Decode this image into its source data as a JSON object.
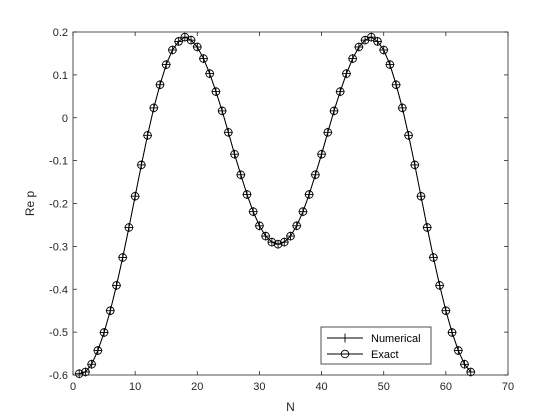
{
  "chart_data": {
    "type": "line",
    "title": "",
    "xlabel": "N",
    "ylabel": "Re p",
    "xlim": [
      0,
      70
    ],
    "ylim": [
      -0.6,
      0.2
    ],
    "xticks": [
      0,
      10,
      20,
      30,
      40,
      50,
      60,
      70
    ],
    "yticks": [
      -0.6,
      -0.5,
      -0.4,
      -0.3,
      -0.2,
      -0.1,
      0,
      0.1,
      0.2
    ],
    "xtick_labels": [
      "0",
      "10",
      "20",
      "30",
      "40",
      "50",
      "60",
      "70"
    ],
    "ytick_labels": [
      "-0.6",
      "-0.5",
      "-0.4",
      "-0.3",
      "-0.2",
      "-0.1",
      "0",
      "0.1",
      "0.2"
    ],
    "grid": false,
    "legend_position": "bottom-right",
    "x": [
      1,
      2,
      3,
      4,
      5,
      6,
      7,
      8,
      9,
      10,
      11,
      12,
      13,
      14,
      15,
      16,
      17,
      18,
      19,
      20,
      21,
      22,
      23,
      24,
      25,
      26,
      27,
      28,
      29,
      30,
      31,
      32,
      33,
      34,
      35,
      36,
      37,
      38,
      39,
      40,
      41,
      42,
      43,
      44,
      45,
      46,
      47,
      48,
      49,
      50,
      51,
      52,
      53,
      54,
      55,
      56,
      57,
      58,
      59,
      60,
      61,
      62,
      63,
      64
    ],
    "series": [
      {
        "name": "Numerical",
        "marker": "plus",
        "values": [
          -0.597,
          -0.593,
          -0.575,
          -0.543,
          -0.501,
          -0.45,
          -0.391,
          -0.326,
          -0.256,
          -0.183,
          -0.11,
          -0.041,
          0.023,
          0.077,
          0.124,
          0.158,
          0.178,
          0.188,
          0.181,
          0.165,
          0.138,
          0.103,
          0.061,
          0.016,
          -0.034,
          -0.085,
          -0.133,
          -0.179,
          -0.219,
          -0.252,
          -0.276,
          -0.29,
          -0.295,
          -0.29,
          -0.276,
          -0.252,
          -0.219,
          -0.179,
          -0.133,
          -0.085,
          -0.034,
          0.016,
          0.061,
          0.103,
          0.138,
          0.165,
          0.181,
          0.188,
          0.178,
          0.158,
          0.124,
          0.077,
          0.023,
          -0.041,
          -0.11,
          -0.183,
          -0.256,
          -0.326,
          -0.391,
          -0.45,
          -0.501,
          -0.543,
          -0.575,
          -0.593
        ]
      },
      {
        "name": "Exact",
        "marker": "circle",
        "values": [
          -0.597,
          -0.593,
          -0.575,
          -0.543,
          -0.501,
          -0.45,
          -0.391,
          -0.326,
          -0.256,
          -0.183,
          -0.11,
          -0.041,
          0.023,
          0.077,
          0.124,
          0.158,
          0.178,
          0.188,
          0.181,
          0.165,
          0.138,
          0.103,
          0.061,
          0.016,
          -0.034,
          -0.085,
          -0.133,
          -0.179,
          -0.219,
          -0.252,
          -0.276,
          -0.29,
          -0.295,
          -0.29,
          -0.276,
          -0.252,
          -0.219,
          -0.179,
          -0.133,
          -0.085,
          -0.034,
          0.016,
          0.061,
          0.103,
          0.138,
          0.165,
          0.181,
          0.188,
          0.178,
          0.158,
          0.124,
          0.077,
          0.023,
          -0.041,
          -0.11,
          -0.183,
          -0.256,
          -0.326,
          -0.391,
          -0.45,
          -0.501,
          -0.543,
          -0.575,
          -0.593
        ]
      }
    ]
  }
}
